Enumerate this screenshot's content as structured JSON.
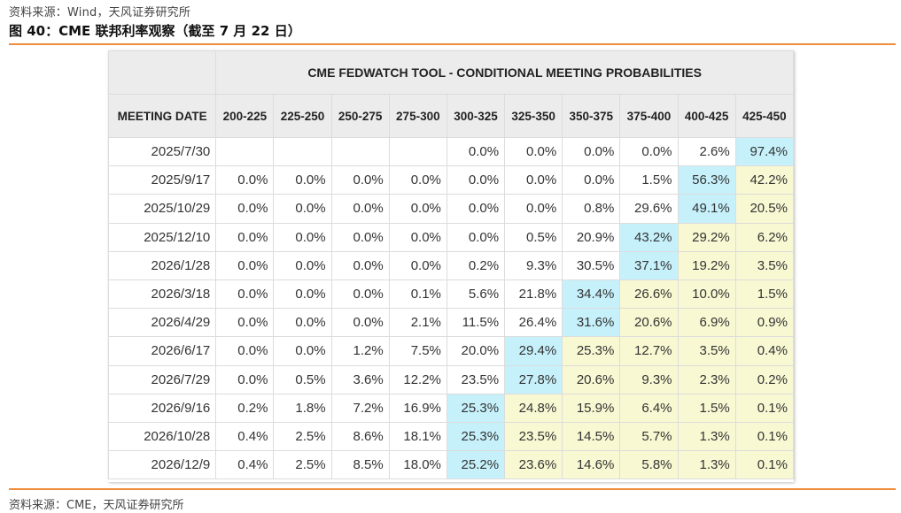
{
  "source_top": "资料来源：Wind，天风证券研究所",
  "figure_title": "图 40：CME 联邦利率观察（截至 7 月 22 日）",
  "source_bottom": "资料来源：CME，天风证券研究所",
  "colors": {
    "accent_rule": "#ef8d3c",
    "header_bg": "#ececec",
    "highlight_max": "#c6f1fb",
    "highlight_above": "#f8f8d3"
  },
  "table": {
    "tool_title": "CME FEDWATCH TOOL - CONDITIONAL MEETING PROBABILITIES",
    "columns": [
      "MEETING DATE",
      "200-225",
      "225-250",
      "250-275",
      "275-300",
      "300-325",
      "325-350",
      "350-375",
      "375-400",
      "400-425",
      "425-450"
    ],
    "rows": [
      {
        "date": "2025/7/30",
        "values": [
          "",
          "",
          "",
          "",
          "0.0%",
          "0.0%",
          "0.0%",
          "0.0%",
          "2.6%",
          "97.4%"
        ],
        "hl": [
          "",
          "",
          "",
          "",
          "",
          "",
          "",
          "",
          "",
          "c"
        ]
      },
      {
        "date": "2025/9/17",
        "values": [
          "0.0%",
          "0.0%",
          "0.0%",
          "0.0%",
          "0.0%",
          "0.0%",
          "0.0%",
          "1.5%",
          "56.3%",
          "42.2%"
        ],
        "hl": [
          "",
          "",
          "",
          "",
          "",
          "",
          "",
          "",
          "c",
          "y"
        ]
      },
      {
        "date": "2025/10/29",
        "values": [
          "0.0%",
          "0.0%",
          "0.0%",
          "0.0%",
          "0.0%",
          "0.0%",
          "0.8%",
          "29.6%",
          "49.1%",
          "20.5%"
        ],
        "hl": [
          "",
          "",
          "",
          "",
          "",
          "",
          "",
          "",
          "c",
          "y"
        ]
      },
      {
        "date": "2025/12/10",
        "values": [
          "0.0%",
          "0.0%",
          "0.0%",
          "0.0%",
          "0.0%",
          "0.5%",
          "20.9%",
          "43.2%",
          "29.2%",
          "6.2%"
        ],
        "hl": [
          "",
          "",
          "",
          "",
          "",
          "",
          "",
          "c",
          "y",
          "y"
        ]
      },
      {
        "date": "2026/1/28",
        "values": [
          "0.0%",
          "0.0%",
          "0.0%",
          "0.0%",
          "0.2%",
          "9.3%",
          "30.5%",
          "37.1%",
          "19.2%",
          "3.5%"
        ],
        "hl": [
          "",
          "",
          "",
          "",
          "",
          "",
          "",
          "c",
          "y",
          "y"
        ]
      },
      {
        "date": "2026/3/18",
        "values": [
          "0.0%",
          "0.0%",
          "0.0%",
          "0.1%",
          "5.6%",
          "21.8%",
          "34.4%",
          "26.6%",
          "10.0%",
          "1.5%"
        ],
        "hl": [
          "",
          "",
          "",
          "",
          "",
          "",
          "c",
          "y",
          "y",
          "y"
        ]
      },
      {
        "date": "2026/4/29",
        "values": [
          "0.0%",
          "0.0%",
          "0.0%",
          "2.1%",
          "11.5%",
          "26.4%",
          "31.6%",
          "20.6%",
          "6.9%",
          "0.9%"
        ],
        "hl": [
          "",
          "",
          "",
          "",
          "",
          "",
          "c",
          "y",
          "y",
          "y"
        ]
      },
      {
        "date": "2026/6/17",
        "values": [
          "0.0%",
          "0.0%",
          "1.2%",
          "7.5%",
          "20.0%",
          "29.4%",
          "25.3%",
          "12.7%",
          "3.5%",
          "0.4%"
        ],
        "hl": [
          "",
          "",
          "",
          "",
          "",
          "c",
          "y",
          "y",
          "y",
          "y"
        ]
      },
      {
        "date": "2026/7/29",
        "values": [
          "0.0%",
          "0.5%",
          "3.6%",
          "12.2%",
          "23.5%",
          "27.8%",
          "20.6%",
          "9.3%",
          "2.3%",
          "0.2%"
        ],
        "hl": [
          "",
          "",
          "",
          "",
          "",
          "c",
          "y",
          "y",
          "y",
          "y"
        ]
      },
      {
        "date": "2026/9/16",
        "values": [
          "0.2%",
          "1.8%",
          "7.2%",
          "16.9%",
          "25.3%",
          "24.8%",
          "15.9%",
          "6.4%",
          "1.5%",
          "0.1%"
        ],
        "hl": [
          "",
          "",
          "",
          "",
          "c",
          "y",
          "y",
          "y",
          "y",
          "y"
        ]
      },
      {
        "date": "2026/10/28",
        "values": [
          "0.4%",
          "2.5%",
          "8.6%",
          "18.1%",
          "25.3%",
          "23.5%",
          "14.5%",
          "5.7%",
          "1.3%",
          "0.1%"
        ],
        "hl": [
          "",
          "",
          "",
          "",
          "c",
          "y",
          "y",
          "y",
          "y",
          "y"
        ]
      },
      {
        "date": "2026/12/9",
        "values": [
          "0.4%",
          "2.5%",
          "8.5%",
          "18.0%",
          "25.2%",
          "23.6%",
          "14.6%",
          "5.8%",
          "1.3%",
          "0.1%"
        ],
        "hl": [
          "",
          "",
          "",
          "",
          "c",
          "y",
          "y",
          "y",
          "y",
          "y"
        ]
      }
    ]
  }
}
